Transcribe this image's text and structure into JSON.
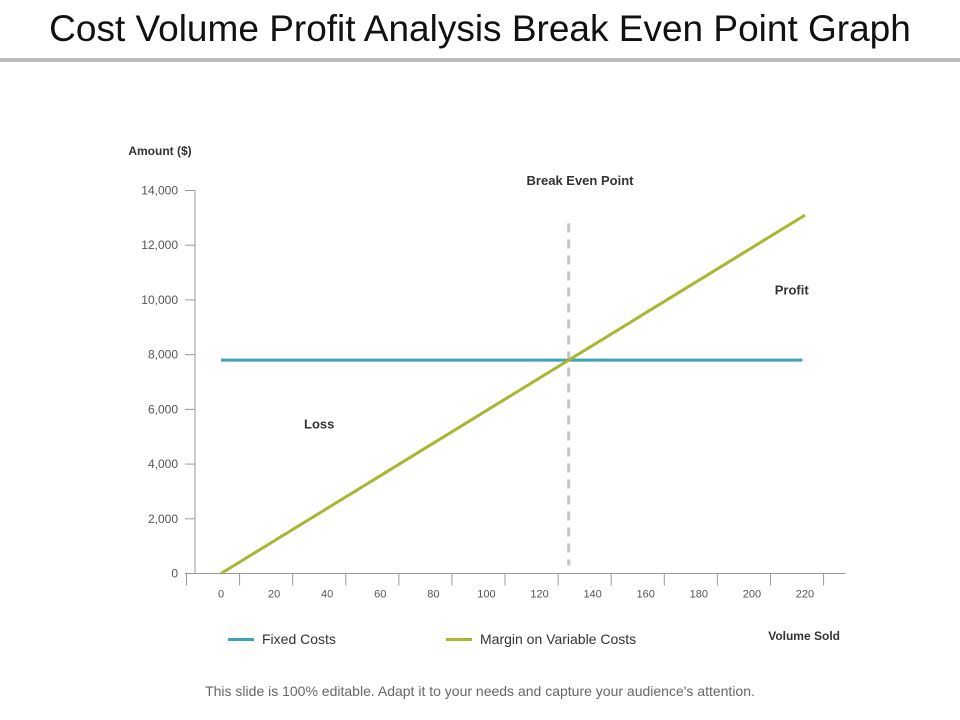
{
  "slide": {
    "title": "Cost Volume Profit Analysis Break Even Point Graph",
    "footer": "This slide is 100% editable. Adapt it to your needs and capture your audience's attention."
  },
  "colors": {
    "fixed": "#3ba3b5",
    "variable": "#a9b630",
    "dashed": "#c4c4c4",
    "axis": "#9a9a9a",
    "text": "#333333"
  },
  "chart_data": {
    "type": "line",
    "ylabel": "Amount  ($)",
    "xlabel": "Volume  Sold",
    "ylim": [
      0,
      14000
    ],
    "yticks": [
      0,
      2000,
      4000,
      6000,
      8000,
      10000,
      12000,
      14000
    ],
    "ytick_labels": [
      "0",
      "2,000",
      "4,000",
      "6,000",
      "8,000",
      "10,000",
      "12,000",
      "14,000"
    ],
    "xticks": [
      0,
      20,
      40,
      60,
      80,
      100,
      120,
      140,
      160,
      180,
      200,
      220
    ],
    "xtick_labels": [
      "0",
      "20",
      "40",
      "60",
      "80",
      "100",
      "120",
      "140",
      "160",
      "180",
      "200",
      "220"
    ],
    "xlim": [
      -10,
      233
    ],
    "series": [
      {
        "name": "Fixed Costs",
        "x": [
          0,
          219
        ],
        "y": [
          7800,
          7800
        ]
      },
      {
        "name": "Margin on Variable Costs",
        "x": [
          0,
          220
        ],
        "y": [
          0,
          13100
        ]
      }
    ],
    "break_even": {
      "label": "Break Even Point",
      "x": 131,
      "y_from": 0,
      "y_to": 12800
    },
    "annotations": [
      {
        "text": "Loss",
        "x": 37,
        "y": 5300
      },
      {
        "text": "Profit",
        "x": 215,
        "y": 10200
      }
    ],
    "grid": false,
    "legend": "bottom-left"
  }
}
